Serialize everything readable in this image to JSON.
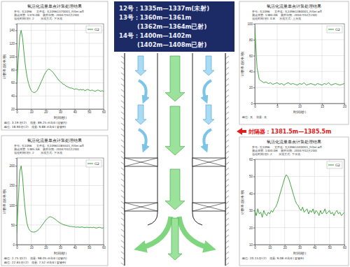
{
  "chart_data": [
    {
      "type": "line",
      "title": "氧活化流量单点计算处理结果",
      "subtitle": [
        "井号: 孔1096     文件名: 孔10961370001_Filter.wfl",
        "测点深度: 1370.0米   测井日期: 2004年02月20日",
        "活化时间(秒): 2       水流方式: 下水流"
      ],
      "annotations": [
        "峰位: 3.19 秒(2)    流量: 89.25 m3/d (油管内)",
        "峰位: 18.90 秒(2)   流量: 9.88 m3/d (套管外)"
      ],
      "x_label": "时间(秒)",
      "y_label": "计数率(脉冲/秒)",
      "x": [
        0,
        1,
        2,
        3,
        4,
        5,
        6,
        7,
        8,
        9,
        10,
        11,
        12,
        13,
        14,
        15,
        16,
        17,
        18,
        19,
        20,
        21,
        22,
        23,
        24,
        25,
        26,
        27,
        28,
        29,
        30,
        31,
        32,
        33,
        34,
        35,
        36,
        37,
        38,
        39,
        40,
        41,
        42,
        43,
        44,
        45,
        46,
        47,
        48,
        49,
        50,
        51,
        52,
        53,
        54,
        55,
        56,
        57,
        58,
        59,
        60
      ],
      "series": [
        {
          "name": "G2",
          "color": "#2e9b2e",
          "values": [
            58,
            95,
            130,
            140,
            128,
            105,
            85,
            70,
            60,
            53,
            48,
            46,
            45,
            46,
            48,
            52,
            57,
            62,
            67,
            72,
            76,
            79,
            81,
            80,
            78,
            76,
            73,
            70,
            67,
            64,
            62,
            60,
            58,
            57,
            55,
            54,
            53,
            52,
            52,
            51,
            50,
            51,
            50,
            49,
            50,
            49,
            50,
            48,
            49,
            50,
            49,
            48,
            49,
            48,
            47,
            48,
            49,
            48,
            47,
            48,
            47
          ]
        }
      ],
      "xlim": [
        0,
        60
      ],
      "xticks": [
        0,
        10,
        20,
        30,
        40,
        50,
        60
      ],
      "ylim": [
        20,
        150
      ],
      "yticks": [
        20,
        40,
        60,
        80,
        100,
        120,
        140
      ],
      "grid": true,
      "legend": "upper right"
    },
    {
      "type": "line",
      "title": "氧活化流量单点计算处理结果",
      "subtitle": [
        "井号: 孔1096     文件名: 孔10961380001_Filter.wfl",
        "测点深度: 1380.0米   测井日期: 2004年02月20日",
        "活化时间(秒): 0.8     水流方式: 上水流"
      ],
      "annotations": [
        "峰位: 无    流量: 无"
      ],
      "x_label": "时间(秒)",
      "y_label": "计数率(脉冲/秒)",
      "x": [
        0,
        0.5,
        1,
        1.5,
        2,
        2.5,
        3,
        3.5,
        4,
        4.5,
        5,
        5.5,
        6,
        6.5,
        7,
        7.5,
        8,
        8.5,
        9,
        9.5,
        10,
        10.5,
        11,
        11.5,
        12,
        12.5,
        13,
        13.5,
        14,
        14.5,
        15,
        15.5,
        16,
        16.5,
        17,
        17.5,
        18,
        18.5,
        19,
        19.5,
        20
      ],
      "series": [
        {
          "name": "G2",
          "color": "#2e9b2e",
          "values": [
            95,
            45,
            30,
            28,
            26,
            27,
            25,
            26,
            24,
            25,
            26,
            24,
            25,
            23,
            25,
            26,
            24,
            25,
            24,
            23,
            25,
            24,
            26,
            23,
            24,
            25,
            24,
            23,
            25,
            24,
            23,
            25,
            24,
            26,
            23,
            24,
            25,
            24,
            23,
            24,
            25
          ]
        }
      ],
      "xlim": [
        0,
        20
      ],
      "xticks": [
        0,
        5,
        10,
        15,
        20
      ],
      "ylim": [
        0,
        100
      ],
      "yticks": [
        0,
        20,
        40,
        60,
        80,
        100
      ],
      "grid": true,
      "legend": "upper right"
    },
    {
      "type": "line",
      "title": "氧活化流量单点计算处理结果",
      "subtitle": [
        "井号: 孔1096     文件名: 孔10961385501_Filter.wfl",
        "测点深度: 1385.5米   测井日期: 2004年02月20日",
        "活化时间(秒): 2       水流方式: 下水流"
      ],
      "annotations": [
        "峰位: 2.75 秒(2)    流量: 98.05 m3/d (油管内)",
        "峰位: 22.65 秒(2)   流量: 7.52 m3/d (套管外)"
      ],
      "x_label": "时间(秒)",
      "y_label": "计数率(脉冲/秒)",
      "x": [
        0,
        1,
        2,
        3,
        4,
        5,
        6,
        7,
        8,
        9,
        10,
        11,
        12,
        13,
        14,
        15,
        16,
        17,
        18,
        19,
        20,
        21,
        22,
        23,
        24,
        25,
        26,
        27,
        28,
        29,
        30,
        31,
        32,
        33,
        34,
        35,
        36,
        37,
        38,
        39,
        40,
        41,
        42,
        43,
        44,
        45,
        46,
        47,
        48,
        49,
        50,
        51,
        52,
        53,
        54,
        55,
        56,
        57,
        58,
        59,
        60
      ],
      "series": [
        {
          "name": "G2",
          "color": "#2e9b2e",
          "values": [
            30,
            110,
            185,
            200,
            170,
            120,
            80,
            55,
            42,
            36,
            33,
            32,
            32,
            33,
            35,
            38,
            42,
            47,
            52,
            57,
            62,
            66,
            69,
            71,
            70,
            68,
            66,
            63,
            60,
            57,
            55,
            53,
            51,
            50,
            49,
            48,
            47,
            46,
            46,
            45,
            45,
            44,
            45,
            44,
            44,
            45,
            44,
            43,
            44,
            44,
            43,
            44,
            43,
            44,
            43,
            42,
            43,
            44,
            43,
            42,
            43
          ]
        }
      ],
      "xlim": [
        0,
        60
      ],
      "xticks": [
        0,
        10,
        20,
        30,
        40,
        50,
        60
      ],
      "ylim": [
        0,
        220
      ],
      "yticks": [
        0,
        50,
        100,
        150,
        200
      ],
      "grid": true,
      "legend": "upper right"
    },
    {
      "type": "line",
      "title": "氧活化流量单点计算处理结果",
      "subtitle": [
        "井号: 孔1096     文件名: 孔10961400001_Filter.wfl",
        "测点深度: 1400.0米   测井日期: 2004年02月20日",
        "活化时间(秒): 2       水流方式: 下水流"
      ],
      "annotations": [
        "峰位: 20.15 秒(2)   流量: 9.08 m3/d (套管外)"
      ],
      "x_label": "时间(秒)",
      "y_label": "计数率(脉冲/秒)",
      "x": [
        0,
        1,
        2,
        3,
        4,
        5,
        6,
        7,
        8,
        9,
        10,
        11,
        12,
        13,
        14,
        15,
        16,
        17,
        18,
        19,
        20,
        21,
        22,
        23,
        24,
        25,
        26,
        27,
        28,
        29,
        30,
        31,
        32,
        33,
        34,
        35,
        36,
        37,
        38,
        39,
        40,
        41,
        42,
        43,
        44,
        45,
        46,
        47,
        48,
        49,
        50,
        51,
        52,
        53,
        54,
        55,
        56,
        57,
        58,
        59,
        60
      ],
      "series": [
        {
          "name": "G2",
          "color": "#2e9b2e",
          "values": [
            30,
            27,
            31,
            28,
            29,
            26,
            30,
            28,
            27,
            29,
            28,
            30,
            29,
            31,
            32,
            34,
            37,
            40,
            43,
            46,
            49,
            51,
            50,
            48,
            45,
            42,
            39,
            36,
            34,
            33,
            31,
            30,
            32,
            29,
            30,
            31,
            28,
            30,
            29,
            31,
            28,
            30,
            29,
            27,
            30,
            28,
            29,
            31,
            28,
            29,
            30,
            28,
            29,
            27,
            29,
            30,
            28,
            29,
            27,
            28,
            29
          ]
        }
      ],
      "xlim": [
        0,
        60
      ],
      "xticks": [
        0,
        10,
        20,
        30,
        40,
        50,
        60
      ],
      "ylim": [
        10,
        60
      ],
      "yticks": [
        10,
        20,
        30,
        40,
        50,
        60
      ],
      "grid": true,
      "legend": "upper right"
    }
  ],
  "diagram": {
    "labels": [
      "12号：1335m—1337m(未射)",
      "13号：1360m—1361m",
      "(1362m—1364m已射)",
      "14号：1400m—1402m",
      "(1402m—1408m已射)"
    ],
    "packer": "封隔器：1381.5m—1385.5m"
  }
}
